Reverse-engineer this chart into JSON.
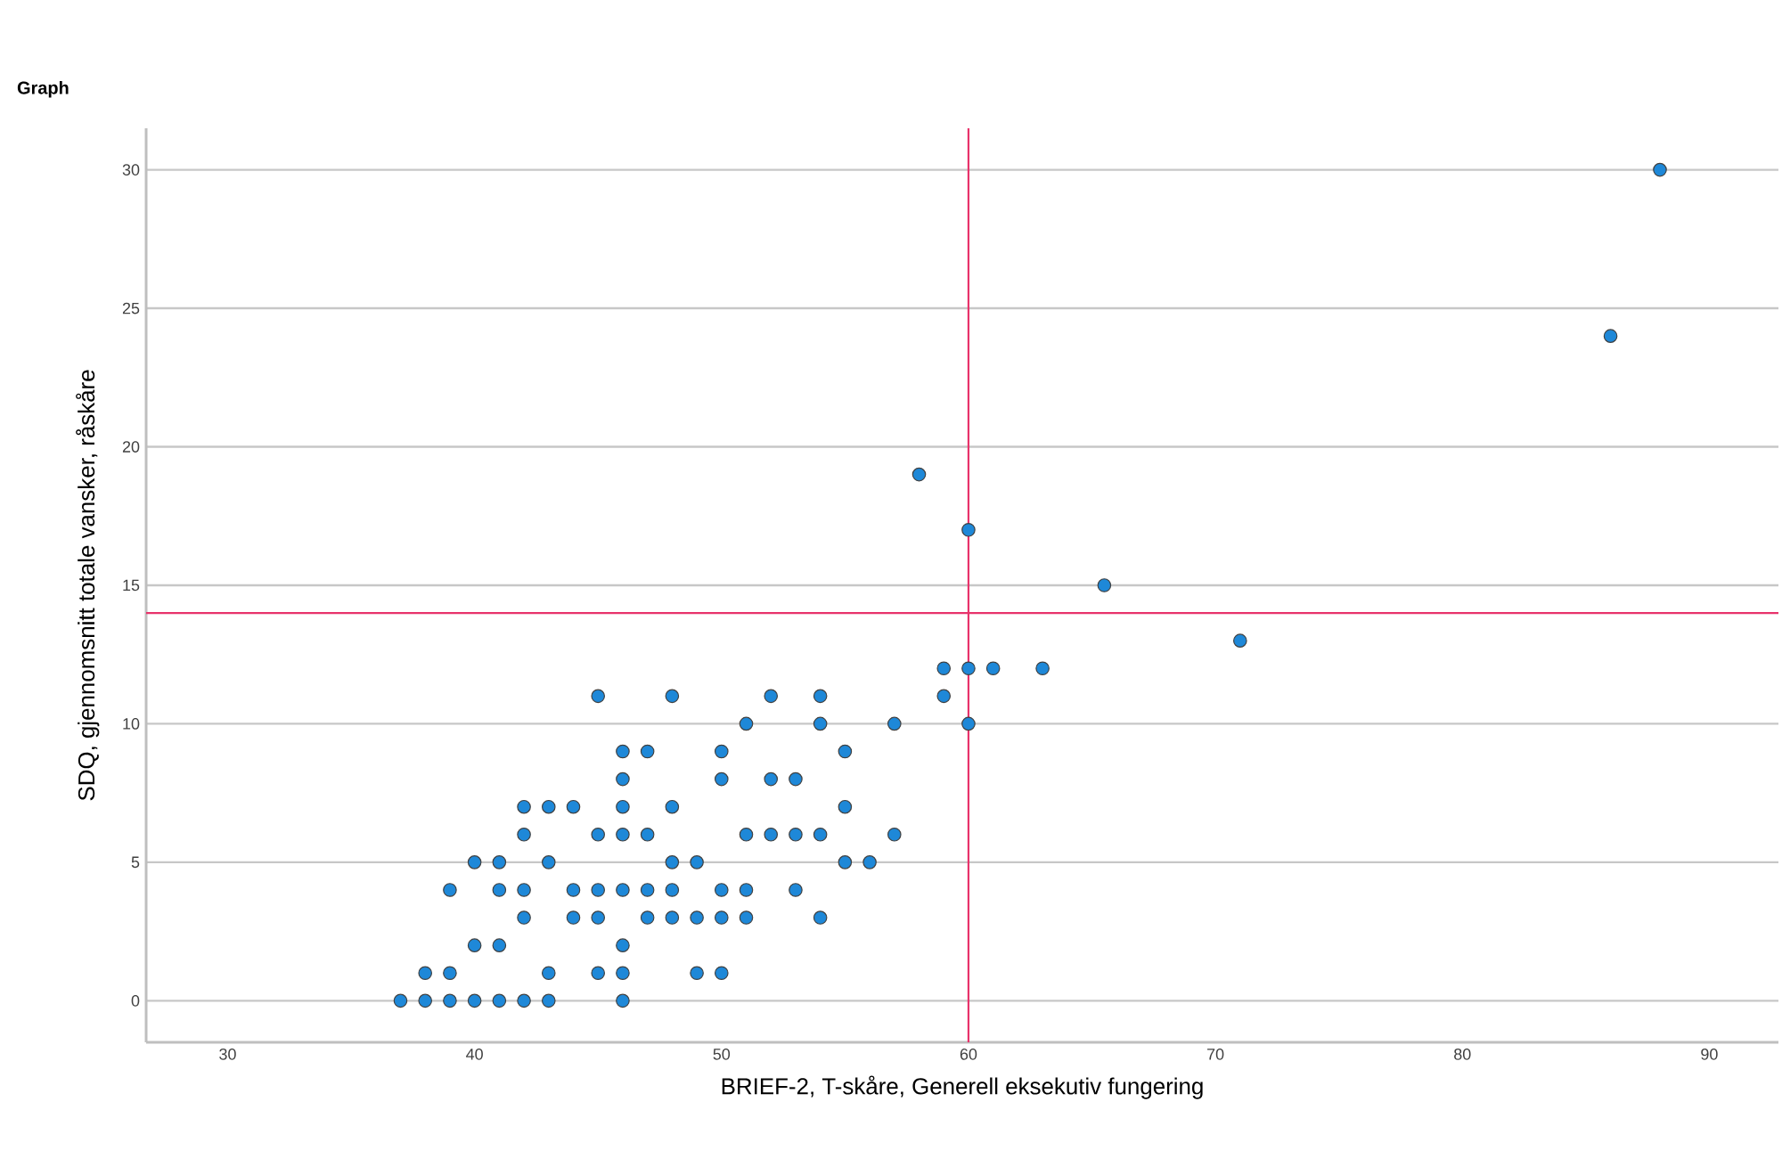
{
  "chart_data": {
    "type": "scatter",
    "title": "Graph",
    "xlabel": "BRIEF-2, T-skåre, Generell eksekutiv fungering",
    "ylabel": "SDQ, gjennomsnitt totale vansker, råskåre",
    "xlim": [
      26.7,
      92.8
    ],
    "ylim": [
      -1.5,
      31.5
    ],
    "xticks": [
      30,
      40,
      50,
      60,
      70,
      80,
      90
    ],
    "yticks": [
      0,
      5,
      10,
      15,
      20,
      25,
      30
    ],
    "grid": "y",
    "marker": "circle",
    "ref_lines": [
      {
        "axis": "x",
        "value": 60,
        "color": "#e8336b"
      },
      {
        "axis": "y",
        "value": 14,
        "color": "#e8336b"
      }
    ],
    "series": [
      {
        "color": "#1e88d8",
        "x": [
          37,
          38,
          39,
          40,
          41,
          42,
          43,
          46,
          38,
          39,
          43,
          45,
          46,
          49,
          50,
          40,
          41,
          46,
          42,
          44,
          45,
          47,
          48,
          49,
          50,
          51,
          54,
          39,
          41,
          42,
          44,
          45,
          46,
          47,
          48,
          50,
          51,
          53,
          40,
          41,
          43,
          48,
          49,
          55,
          56,
          42,
          45,
          46,
          47,
          51,
          52,
          53,
          54,
          57,
          42,
          43,
          44,
          46,
          48,
          55,
          46,
          50,
          52,
          53,
          46,
          47,
          50,
          55,
          51,
          54,
          57,
          60,
          45,
          48,
          52,
          54,
          59,
          59,
          60,
          61,
          63,
          71,
          65.5,
          60,
          58,
          86,
          88
        ],
        "values": [
          0,
          0,
          0,
          0,
          0,
          0,
          0,
          0,
          1,
          1,
          1,
          1,
          1,
          1,
          1,
          2,
          2,
          2,
          3,
          3,
          3,
          3,
          3,
          3,
          3,
          3,
          3,
          4,
          4,
          4,
          4,
          4,
          4,
          4,
          4,
          4,
          4,
          4,
          5,
          5,
          5,
          5,
          5,
          5,
          5,
          6,
          6,
          6,
          6,
          6,
          6,
          6,
          6,
          6,
          7,
          7,
          7,
          7,
          7,
          7,
          8,
          8,
          8,
          8,
          9,
          9,
          9,
          9,
          10,
          10,
          10,
          10,
          11,
          11,
          11,
          11,
          11,
          12,
          12,
          12,
          12,
          13,
          15,
          17,
          19,
          24,
          30
        ]
      }
    ]
  }
}
